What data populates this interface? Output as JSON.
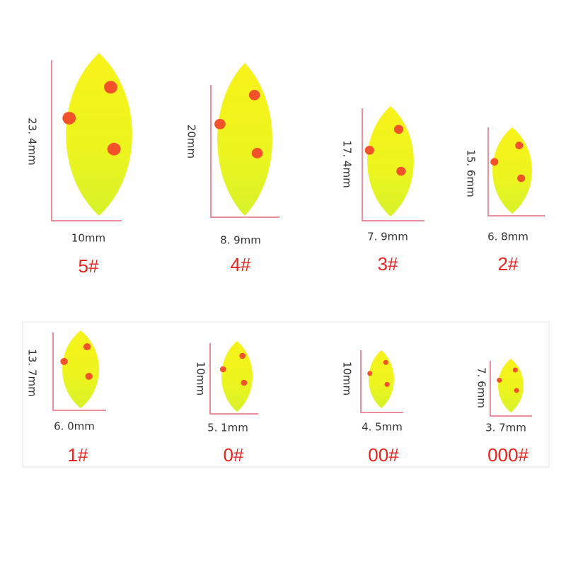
{
  "items": [
    {
      "height": "23. 4mm",
      "width": "10mm",
      "size": "5#"
    },
    {
      "height": "20mm",
      "width": "8. 9mm",
      "size": "4#"
    },
    {
      "height": "17. 4mm",
      "width": "7. 9mm",
      "size": "3#"
    },
    {
      "height": "15. 6mm",
      "width": "6. 8mm",
      "size": "2#"
    },
    {
      "height": "13. 7mm",
      "width": "6. 0mm",
      "size": "1#"
    },
    {
      "height": "10mm",
      "width": "5. 1mm",
      "size": "0#"
    },
    {
      "height": "10mm",
      "width": "4. 5mm",
      "size": "00#"
    },
    {
      "height": "7. 6mm",
      "width": "3. 7mm",
      "size": "000#"
    }
  ]
}
